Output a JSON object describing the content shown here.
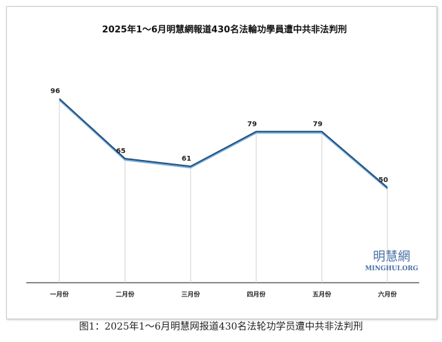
{
  "chart_data": {
    "type": "line",
    "title": "2025年1～6月明慧網報道430名法輪功學員遭中共非法判刑",
    "categories": [
      "一月份",
      "二月份",
      "三月份",
      "四月份",
      "五月份",
      "六月份"
    ],
    "values": [
      96,
      65,
      61,
      79,
      79,
      50
    ],
    "xlabel": "",
    "ylabel": "",
    "ylim": [
      0,
      100
    ],
    "grid": "vertical drop lines",
    "legend": "none",
    "line_color": "#1f4e79"
  },
  "watermark": {
    "cn": "明慧網",
    "en": "MINGHUI.ORG"
  },
  "caption": "图1：2025年1～6月明慧网报道430名法轮功学员遭中共非法判刑"
}
